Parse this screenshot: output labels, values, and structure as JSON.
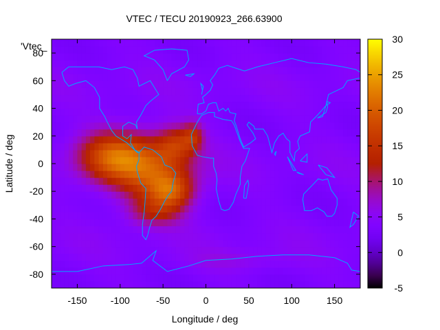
{
  "chart_data": {
    "type": "heatmap",
    "title": "VTEC / TECU 20190923_266.63900",
    "xlabel": "Longitude / deg",
    "ylabel": "Latitude / deg",
    "xlim": [
      -180,
      180
    ],
    "ylim": [
      -90,
      90
    ],
    "x_ticks": [
      -150,
      -100,
      -50,
      0,
      50,
      100,
      150
    ],
    "y_ticks": [
      -80,
      -60,
      -40,
      -20,
      0,
      20,
      40,
      60,
      80
    ],
    "colorbar": {
      "range": [
        -5,
        30
      ],
      "ticks": [
        -5,
        0,
        5,
        10,
        15,
        20,
        25,
        30
      ],
      "palette": "gnuplot-default"
    },
    "legend_label": "'Vtec_",
    "background_level": 4,
    "enhancements": [
      {
        "lon": -110,
        "lat": 5,
        "amp": 14,
        "slon": 40,
        "slat": 18
      },
      {
        "lon": -60,
        "lat": -5,
        "amp": 13,
        "slon": 45,
        "slat": 25
      },
      {
        "lon": -40,
        "lat": -20,
        "amp": 10,
        "slon": 25,
        "slat": 12
      },
      {
        "lon": -35,
        "lat": 15,
        "amp": 8,
        "slon": 20,
        "slat": 12
      },
      {
        "lon": -15,
        "lat": 20,
        "amp": 8,
        "slon": 12,
        "slat": 10
      },
      {
        "lon": -60,
        "lat": -35,
        "amp": 6,
        "slon": 30,
        "slat": 10
      },
      {
        "lon": 40,
        "lat": -70,
        "amp": 2,
        "slon": 60,
        "slat": 8
      }
    ],
    "coastlines_color": "#00a8ff"
  }
}
